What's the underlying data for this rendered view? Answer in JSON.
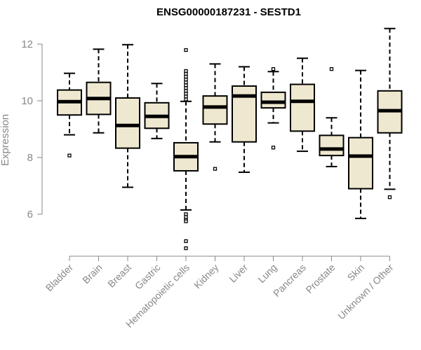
{
  "chart_data": {
    "type": "boxplot",
    "title": "ENSG00000187231 - SESTD1",
    "xlabel": "",
    "ylabel": "Expression",
    "ylim": [
      4.6,
      12.6
    ],
    "yticks": [
      6,
      8,
      10,
      12
    ],
    "box_fill": "#efe8d0",
    "box_stroke": "#000000",
    "axis_color": "#888888",
    "categories": [
      "Bladder",
      "Brain",
      "Breast",
      "Gastric",
      "Hematopoietic cells",
      "Kidney",
      "Liver",
      "Lung",
      "Pancreas",
      "Prostate",
      "Skin",
      "Unknown / Other"
    ],
    "boxes": [
      {
        "name": "Bladder",
        "min": 8.8,
        "q1": 9.5,
        "median": 9.97,
        "q3": 10.38,
        "max": 10.97,
        "outliers": [
          8.07
        ]
      },
      {
        "name": "Brain",
        "min": 8.87,
        "q1": 9.52,
        "median": 10.08,
        "q3": 10.65,
        "max": 11.82,
        "outliers": []
      },
      {
        "name": "Breast",
        "min": 6.95,
        "q1": 8.33,
        "median": 9.13,
        "q3": 10.1,
        "max": 11.98,
        "outliers": []
      },
      {
        "name": "Gastric",
        "min": 8.67,
        "q1": 9.03,
        "median": 9.45,
        "q3": 9.93,
        "max": 10.61,
        "outliers": []
      },
      {
        "name": "Hematopoietic cells",
        "min": 6.15,
        "q1": 7.53,
        "median": 8.03,
        "q3": 8.52,
        "max": 9.98,
        "outliers": [
          11.79,
          11.05,
          10.95,
          10.85,
          10.75,
          10.65,
          10.55,
          10.45,
          10.35,
          10.25,
          10.15,
          10.05,
          6.0,
          5.9,
          5.8,
          5.75,
          5.05,
          4.8
        ]
      },
      {
        "name": "Kidney",
        "min": 8.55,
        "q1": 9.18,
        "median": 9.78,
        "q3": 10.17,
        "max": 11.3,
        "outliers": [
          7.6
        ]
      },
      {
        "name": "Liver",
        "min": 7.48,
        "q1": 8.55,
        "median": 10.17,
        "q3": 10.52,
        "max": 11.2,
        "outliers": []
      },
      {
        "name": "Lung",
        "min": 9.22,
        "q1": 9.75,
        "median": 9.95,
        "q3": 10.3,
        "max": 11.03,
        "outliers": [
          11.12,
          8.35
        ]
      },
      {
        "name": "Pancreas",
        "min": 8.22,
        "q1": 8.93,
        "median": 9.98,
        "q3": 10.58,
        "max": 11.5,
        "outliers": []
      },
      {
        "name": "Prostate",
        "min": 7.68,
        "q1": 8.07,
        "median": 8.3,
        "q3": 8.78,
        "max": 9.4,
        "outliers": [
          11.12
        ]
      },
      {
        "name": "Skin",
        "min": 5.85,
        "q1": 6.9,
        "median": 8.05,
        "q3": 8.7,
        "max": 11.07,
        "outliers": []
      },
      {
        "name": "Unknown / Other",
        "min": 6.88,
        "q1": 8.87,
        "median": 9.65,
        "q3": 10.35,
        "max": 12.55,
        "outliers": [
          6.6
        ]
      }
    ]
  }
}
